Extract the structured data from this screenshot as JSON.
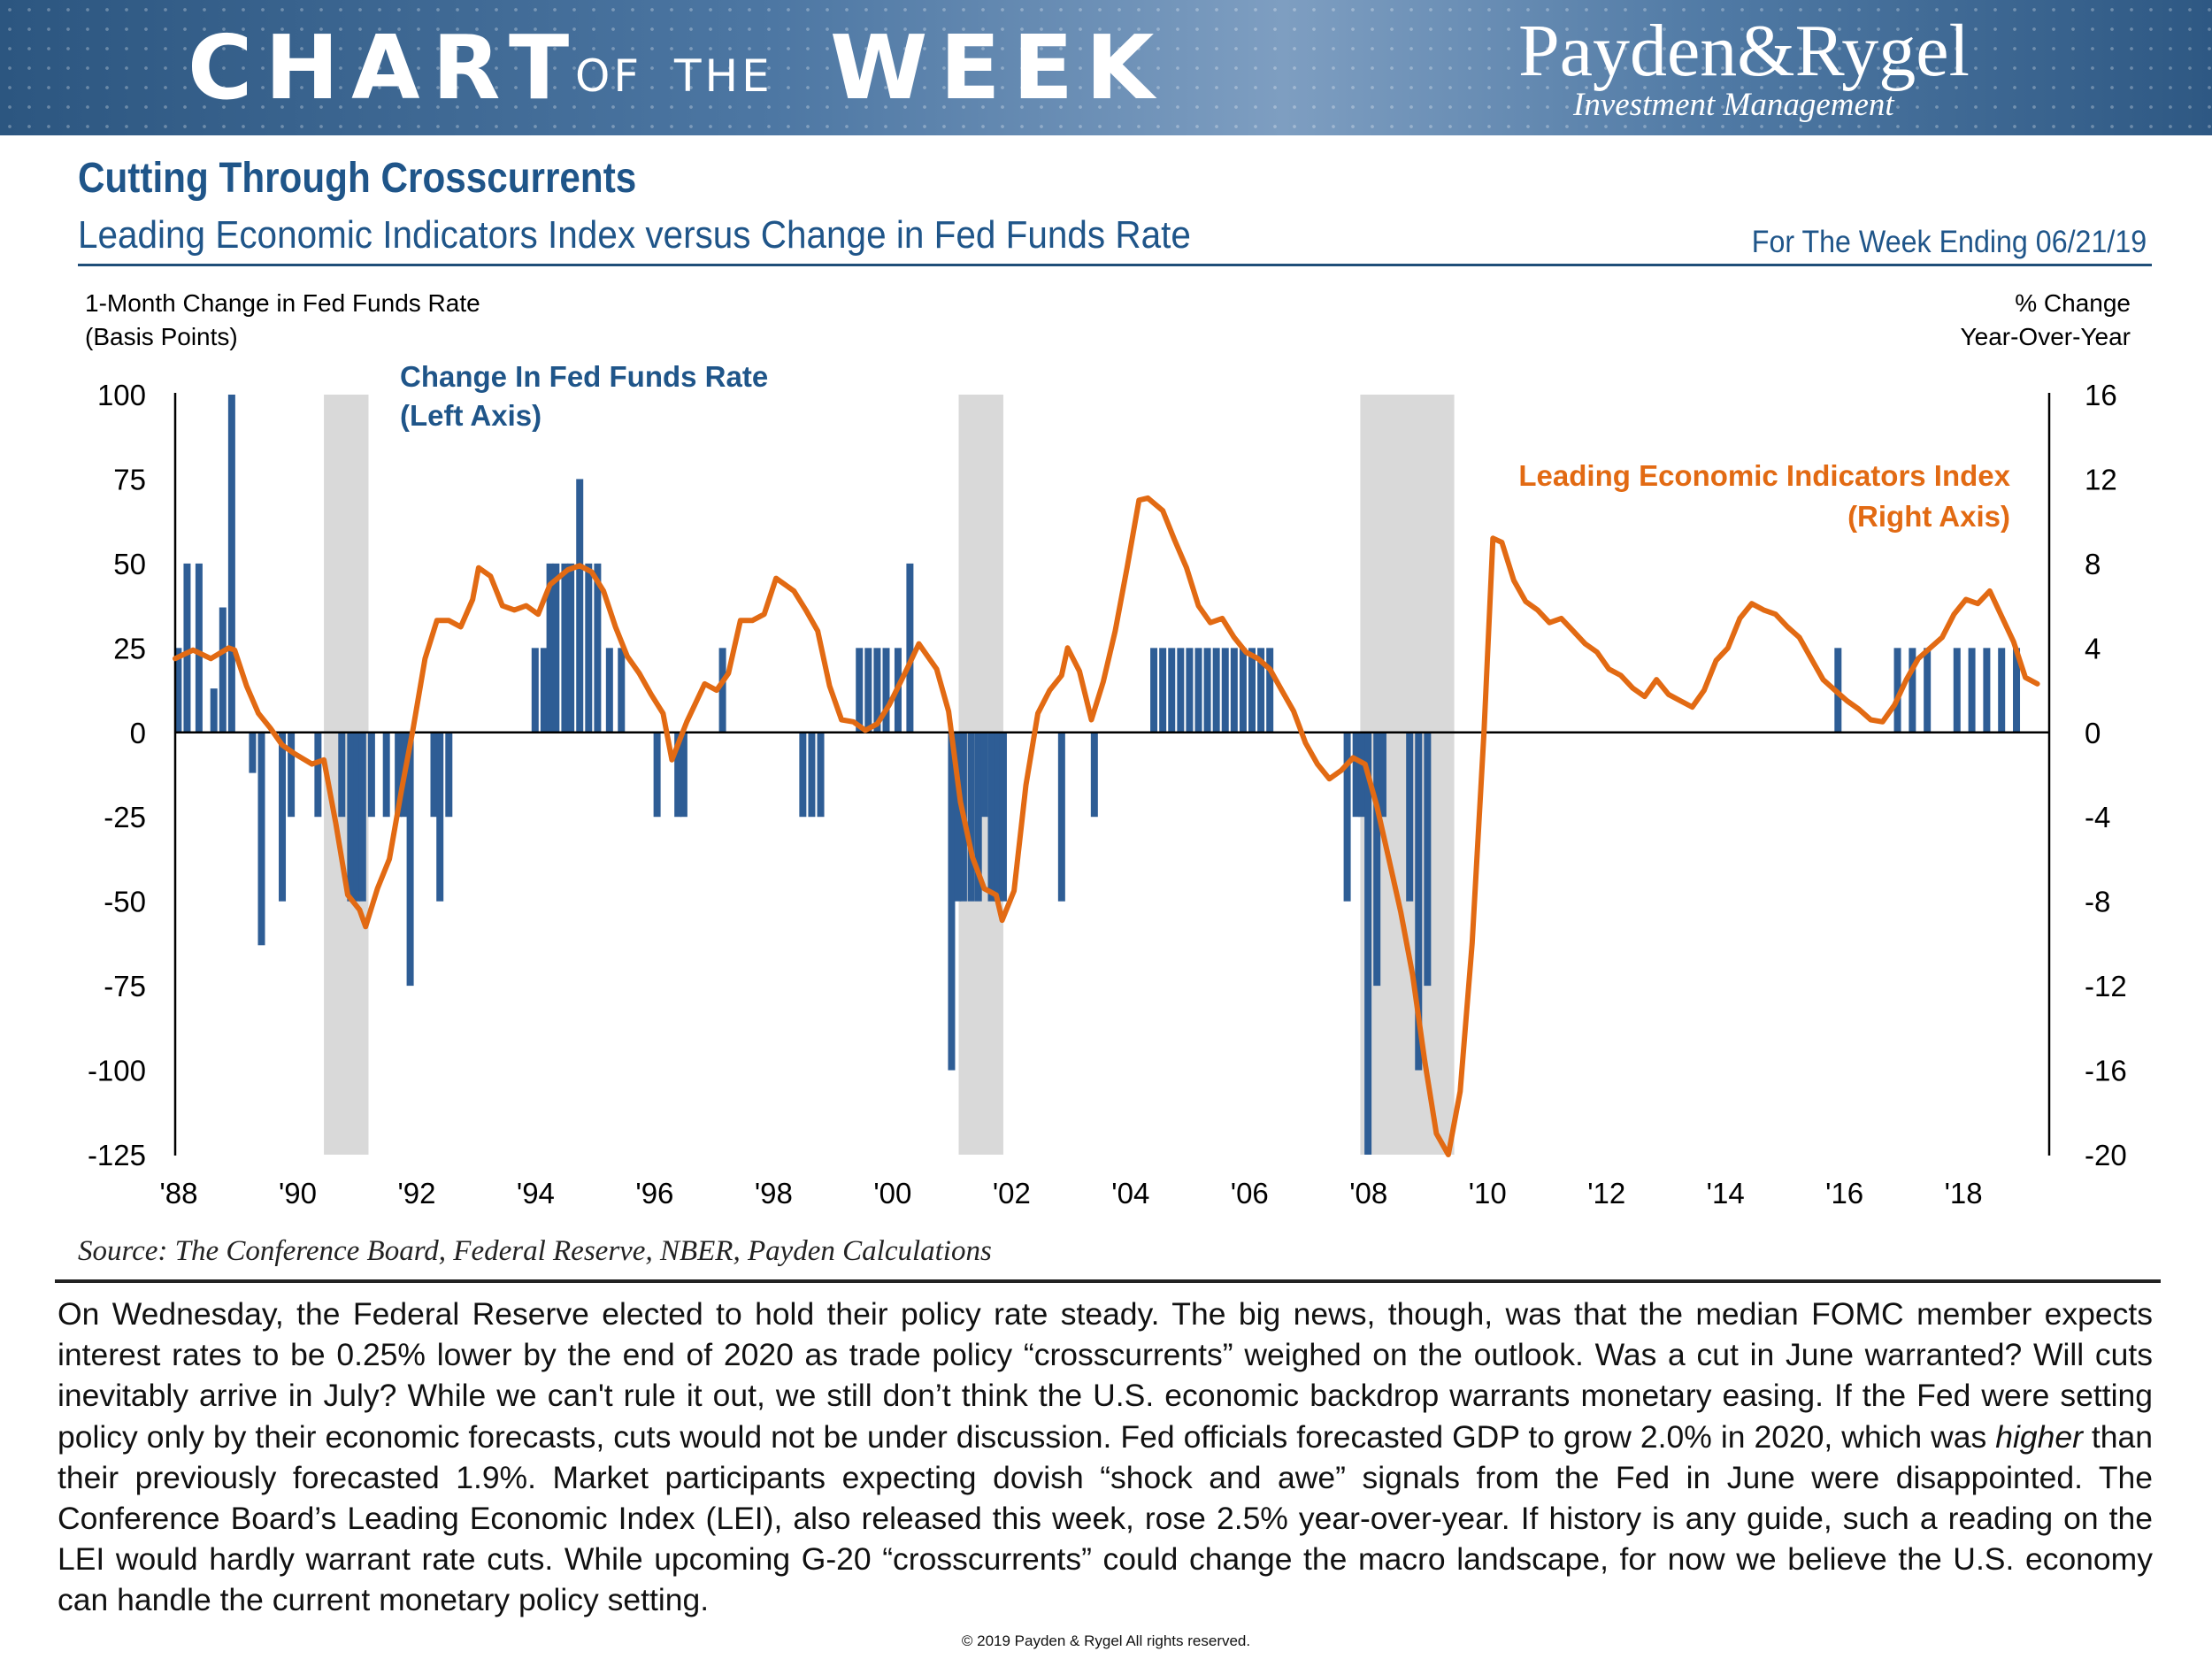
{
  "banner": {
    "word1": "CHART",
    "word2": "OF",
    "word3": "THE",
    "word4": "WEEK",
    "logo": "Payden&Rygel",
    "logo_sub": "Investment Management"
  },
  "header": {
    "title": "Cutting Through Crosscurrents",
    "subtitle": "Leading Economic Indicators Index versus Change in Fed Funds Rate",
    "week": "For The Week Ending 06/21/19"
  },
  "source": "Source: The Conference Board, Federal Reserve, NBER, Payden Calculations",
  "body": {
    "p1": "On Wednesday, the Federal Reserve elected to hold their policy rate steady. The big news, though, was that the median FOMC member expects interest rates to be 0.25% lower by the end of 2020 as trade policy “crosscurrents” weighed on the outlook. Was a cut in June warranted? Will cuts inevitably arrive in July? While we can't rule it out, we still don’t think the U.S. economic backdrop warrants monetary easing. If the Fed were setting policy only by their economic forecasts, cuts would not be under discussion. Fed officials forecasted GDP to grow 2.0% in 2020, which was ",
    "em": "higher",
    "p2": " than their previously forecasted 1.9%. Market participants expecting dovish “shock and awe” signals from the Fed in June were disappointed. The Conference Board’s Leading Economic Index (LEI), also released this week, rose 2.5% year-over-year. If history is any guide, such a reading on the LEI would hardly warrant rate cuts. While upcoming G-20 “crosscurrents” could change the macro landscape, for now we believe the U.S. economy can handle the current monetary policy setting."
  },
  "copyright": "© 2019 Payden & Rygel All rights reserved.",
  "colors": {
    "bar": "#2e5d95",
    "line": "#e26a13",
    "recession": "#d9d9d9",
    "title": "#1f5589"
  },
  "chart_data": {
    "type": "bar+line",
    "left_axis_label_1": "1-Month Change in Fed Funds Rate",
    "left_axis_label_2": "(Basis Points)",
    "right_axis_label_1": "% Change",
    "right_axis_label_2": "Year-Over-Year",
    "left_ylim": [
      -125,
      100
    ],
    "right_ylim": [
      -20,
      16
    ],
    "left_ticks": [
      100,
      75,
      50,
      25,
      0,
      -25,
      -50,
      -75,
      -100,
      -125
    ],
    "right_ticks": [
      16,
      12,
      8,
      4,
      0,
      -4,
      -8,
      -12,
      -16,
      -20
    ],
    "x_range": [
      1988.0,
      2019.5
    ],
    "x_ticks": [
      {
        "year": 1988,
        "label": "'88"
      },
      {
        "year": 1990,
        "label": "'90"
      },
      {
        "year": 1992,
        "label": "'92"
      },
      {
        "year": 1994,
        "label": "'94"
      },
      {
        "year": 1996,
        "label": "'96"
      },
      {
        "year": 1998,
        "label": "'98"
      },
      {
        "year": 2000,
        "label": "'00"
      },
      {
        "year": 2002,
        "label": "'02"
      },
      {
        "year": 2004,
        "label": "'04"
      },
      {
        "year": 2006,
        "label": "'06"
      },
      {
        "year": 2008,
        "label": "'08"
      },
      {
        "year": 2010,
        "label": "'10"
      },
      {
        "year": 2012,
        "label": "'12"
      },
      {
        "year": 2014,
        "label": "'14"
      },
      {
        "year": 2016,
        "label": "'16"
      },
      {
        "year": 2018,
        "label": "'18"
      }
    ],
    "recessions": [
      [
        1990.5,
        1991.25
      ],
      [
        2001.17,
        2001.92
      ],
      [
        2007.92,
        2009.5
      ]
    ],
    "bar_series": {
      "name": "Change In Fed Funds Rate",
      "legend_1": "Change In Fed Funds Rate",
      "legend_2": "(Left Axis)",
      "points": [
        [
          1988.05,
          25
        ],
        [
          1988.2,
          50
        ],
        [
          1988.4,
          50
        ],
        [
          1988.65,
          13
        ],
        [
          1988.8,
          37
        ],
        [
          1988.95,
          100
        ],
        [
          1989.3,
          -12
        ],
        [
          1989.45,
          -63
        ],
        [
          1989.8,
          -50
        ],
        [
          1989.95,
          -25
        ],
        [
          1990.4,
          -25
        ],
        [
          1990.8,
          -25
        ],
        [
          1990.95,
          -50
        ],
        [
          1991.05,
          -50
        ],
        [
          1991.15,
          -50
        ],
        [
          1991.3,
          -25
        ],
        [
          1991.55,
          -25
        ],
        [
          1991.75,
          -25
        ],
        [
          1991.85,
          -25
        ],
        [
          1991.95,
          -75
        ],
        [
          1992.35,
          -25
        ],
        [
          1992.45,
          -50
        ],
        [
          1992.6,
          -25
        ],
        [
          1994.05,
          25
        ],
        [
          1994.2,
          25
        ],
        [
          1994.3,
          50
        ],
        [
          1994.4,
          50
        ],
        [
          1994.55,
          50
        ],
        [
          1994.65,
          50
        ],
        [
          1994.8,
          75
        ],
        [
          1994.95,
          50
        ],
        [
          1995.1,
          50
        ],
        [
          1995.3,
          25
        ],
        [
          1995.5,
          25
        ],
        [
          1996.1,
          -25
        ],
        [
          1996.45,
          -25
        ],
        [
          1996.55,
          -25
        ],
        [
          1997.2,
          25
        ],
        [
          1998.55,
          -25
        ],
        [
          1998.7,
          -25
        ],
        [
          1998.85,
          -25
        ],
        [
          1999.5,
          25
        ],
        [
          1999.65,
          25
        ],
        [
          1999.8,
          25
        ],
        [
          1999.95,
          25
        ],
        [
          2000.15,
          25
        ],
        [
          2000.35,
          50
        ],
        [
          2001.05,
          -100
        ],
        [
          2001.15,
          -50
        ],
        [
          2001.25,
          -50
        ],
        [
          2001.38,
          -50
        ],
        [
          2001.5,
          -50
        ],
        [
          2001.6,
          -25
        ],
        [
          2001.72,
          -50
        ],
        [
          2001.82,
          -50
        ],
        [
          2001.92,
          -50
        ],
        [
          2002.9,
          -50
        ],
        [
          2003.45,
          -25
        ],
        [
          2004.45,
          25
        ],
        [
          2004.6,
          25
        ],
        [
          2004.75,
          25
        ],
        [
          2004.9,
          25
        ],
        [
          2005.05,
          25
        ],
        [
          2005.2,
          25
        ],
        [
          2005.35,
          25
        ],
        [
          2005.5,
          25
        ],
        [
          2005.65,
          25
        ],
        [
          2005.8,
          25
        ],
        [
          2005.95,
          25
        ],
        [
          2006.1,
          25
        ],
        [
          2006.25,
          25
        ],
        [
          2006.4,
          25
        ],
        [
          2007.7,
          -50
        ],
        [
          2007.85,
          -25
        ],
        [
          2007.95,
          -25
        ],
        [
          2008.05,
          -125
        ],
        [
          2008.2,
          -75
        ],
        [
          2008.3,
          -25
        ],
        [
          2008.75,
          -50
        ],
        [
          2008.9,
          -100
        ],
        [
          2009.05,
          -75
        ],
        [
          2015.95,
          25
        ],
        [
          2016.95,
          25
        ],
        [
          2017.2,
          25
        ],
        [
          2017.45,
          25
        ],
        [
          2017.95,
          25
        ],
        [
          2018.2,
          25
        ],
        [
          2018.45,
          25
        ],
        [
          2018.7,
          25
        ],
        [
          2018.95,
          25
        ]
      ]
    },
    "line_series": {
      "name": "Leading Economic Indicators Index",
      "legend_1": "Leading Economic Indicators Index",
      "legend_2": "(Right Axis)",
      "points": [
        [
          1988.0,
          3.5
        ],
        [
          1988.3,
          3.9
        ],
        [
          1988.6,
          3.5
        ],
        [
          1988.9,
          4.0
        ],
        [
          1989.0,
          3.9
        ],
        [
          1989.2,
          2.2
        ],
        [
          1989.4,
          0.9
        ],
        [
          1989.6,
          0.2
        ],
        [
          1989.8,
          -0.6
        ],
        [
          1990.0,
          -1.0
        ],
        [
          1990.3,
          -1.5
        ],
        [
          1990.5,
          -1.3
        ],
        [
          1990.7,
          -4.3
        ],
        [
          1990.9,
          -7.7
        ],
        [
          1991.1,
          -8.4
        ],
        [
          1991.2,
          -9.2
        ],
        [
          1991.4,
          -7.4
        ],
        [
          1991.6,
          -6.0
        ],
        [
          1991.8,
          -2.8
        ],
        [
          1992.0,
          0.2
        ],
        [
          1992.2,
          3.5
        ],
        [
          1992.4,
          5.3
        ],
        [
          1992.6,
          5.3
        ],
        [
          1992.8,
          5.0
        ],
        [
          1993.0,
          6.3
        ],
        [
          1993.1,
          7.8
        ],
        [
          1993.3,
          7.4
        ],
        [
          1993.5,
          6.0
        ],
        [
          1993.7,
          5.8
        ],
        [
          1993.9,
          6.0
        ],
        [
          1994.1,
          5.6
        ],
        [
          1994.3,
          7.0
        ],
        [
          1994.6,
          7.7
        ],
        [
          1994.8,
          7.9
        ],
        [
          1995.0,
          7.6
        ],
        [
          1995.2,
          6.7
        ],
        [
          1995.4,
          5.0
        ],
        [
          1995.6,
          3.6
        ],
        [
          1995.8,
          2.8
        ],
        [
          1996.0,
          1.8
        ],
        [
          1996.2,
          0.9
        ],
        [
          1996.35,
          -1.3
        ],
        [
          1996.6,
          0.5
        ],
        [
          1996.9,
          2.3
        ],
        [
          1997.1,
          2.0
        ],
        [
          1997.3,
          2.8
        ],
        [
          1997.5,
          5.3
        ],
        [
          1997.7,
          5.3
        ],
        [
          1997.9,
          5.6
        ],
        [
          1998.1,
          7.3
        ],
        [
          1998.4,
          6.7
        ],
        [
          1998.6,
          5.8
        ],
        [
          1998.8,
          4.8
        ],
        [
          1999.0,
          2.2
        ],
        [
          1999.2,
          0.6
        ],
        [
          1999.4,
          0.5
        ],
        [
          1999.6,
          0.1
        ],
        [
          1999.8,
          0.4
        ],
        [
          2000.0,
          1.3
        ],
        [
          2000.3,
          3.0
        ],
        [
          2000.5,
          4.2
        ],
        [
          2000.8,
          3.0
        ],
        [
          2001.0,
          1.0
        ],
        [
          2001.2,
          -3.3
        ],
        [
          2001.4,
          -5.9
        ],
        [
          2001.6,
          -7.4
        ],
        [
          2001.8,
          -7.7
        ],
        [
          2001.9,
          -8.9
        ],
        [
          2002.1,
          -7.5
        ],
        [
          2002.3,
          -2.5
        ],
        [
          2002.5,
          0.9
        ],
        [
          2002.7,
          2.0
        ],
        [
          2002.9,
          2.7
        ],
        [
          2003.0,
          4.0
        ],
        [
          2003.2,
          2.9
        ],
        [
          2003.4,
          0.6
        ],
        [
          2003.6,
          2.4
        ],
        [
          2003.8,
          4.8
        ],
        [
          2004.0,
          7.8
        ],
        [
          2004.2,
          11.0
        ],
        [
          2004.35,
          11.1
        ],
        [
          2004.6,
          10.5
        ],
        [
          2004.8,
          9.1
        ],
        [
          2005.0,
          7.8
        ],
        [
          2005.2,
          6.0
        ],
        [
          2005.4,
          5.2
        ],
        [
          2005.6,
          5.4
        ],
        [
          2005.8,
          4.5
        ],
        [
          2006.0,
          3.8
        ],
        [
          2006.2,
          3.5
        ],
        [
          2006.4,
          3.0
        ],
        [
          2006.6,
          2.0
        ],
        [
          2006.8,
          1.0
        ],
        [
          2007.0,
          -0.5
        ],
        [
          2007.2,
          -1.5
        ],
        [
          2007.4,
          -2.2
        ],
        [
          2007.6,
          -1.8
        ],
        [
          2007.8,
          -1.2
        ],
        [
          2008.0,
          -1.5
        ],
        [
          2008.2,
          -3.5
        ],
        [
          2008.4,
          -6.0
        ],
        [
          2008.6,
          -8.5
        ],
        [
          2008.8,
          -11.5
        ],
        [
          2009.0,
          -15.5
        ],
        [
          2009.2,
          -19.0
        ],
        [
          2009.4,
          -20.0
        ],
        [
          2009.6,
          -17.0
        ],
        [
          2009.8,
          -10.0
        ],
        [
          2010.0,
          0.0
        ],
        [
          2010.15,
          9.2
        ],
        [
          2010.3,
          9.0
        ],
        [
          2010.5,
          7.2
        ],
        [
          2010.7,
          6.2
        ],
        [
          2010.9,
          5.8
        ],
        [
          2011.1,
          5.2
        ],
        [
          2011.3,
          5.4
        ],
        [
          2011.5,
          4.8
        ],
        [
          2011.7,
          4.2
        ],
        [
          2011.9,
          3.8
        ],
        [
          2012.1,
          3.0
        ],
        [
          2012.3,
          2.7
        ],
        [
          2012.5,
          2.1
        ],
        [
          2012.7,
          1.7
        ],
        [
          2012.9,
          2.5
        ],
        [
          2013.1,
          1.8
        ],
        [
          2013.3,
          1.5
        ],
        [
          2013.5,
          1.2
        ],
        [
          2013.7,
          2.0
        ],
        [
          2013.9,
          3.4
        ],
        [
          2014.1,
          4.0
        ],
        [
          2014.3,
          5.4
        ],
        [
          2014.5,
          6.1
        ],
        [
          2014.7,
          5.8
        ],
        [
          2014.9,
          5.6
        ],
        [
          2015.1,
          5.0
        ],
        [
          2015.3,
          4.5
        ],
        [
          2015.5,
          3.5
        ],
        [
          2015.7,
          2.5
        ],
        [
          2015.9,
          2.0
        ],
        [
          2016.1,
          1.5
        ],
        [
          2016.3,
          1.1
        ],
        [
          2016.5,
          0.6
        ],
        [
          2016.7,
          0.5
        ],
        [
          2016.9,
          1.3
        ],
        [
          2017.1,
          2.5
        ],
        [
          2017.3,
          3.5
        ],
        [
          2017.5,
          4.0
        ],
        [
          2017.7,
          4.5
        ],
        [
          2017.9,
          5.6
        ],
        [
          2018.1,
          6.3
        ],
        [
          2018.3,
          6.1
        ],
        [
          2018.5,
          6.7
        ],
        [
          2018.7,
          5.5
        ],
        [
          2018.9,
          4.3
        ],
        [
          2019.1,
          2.6
        ],
        [
          2019.3,
          2.3
        ]
      ]
    }
  }
}
